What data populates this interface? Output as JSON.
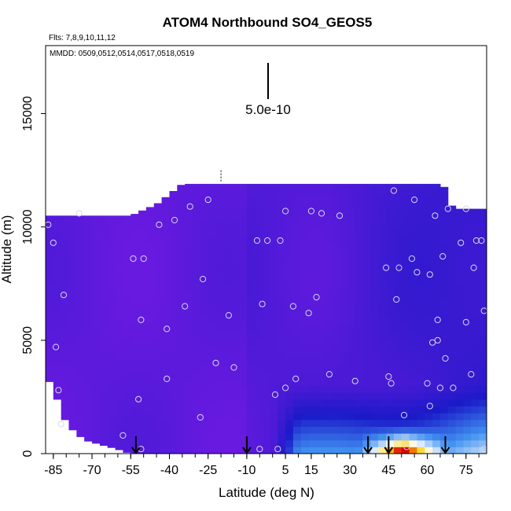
{
  "chart_data": {
    "type": "heatmap",
    "title": "ATOM4 Northbound SO4_GEOS5",
    "subtitle_flights": "Flts: 7,8,9,10,11,12",
    "subtitle_dates": "MMDD: 0509,0512,0514,0517,0518,0519",
    "scale_label": "5.0e-10",
    "xlabel": "Latitude (deg N)",
    "ylabel": "Altitude (m)",
    "xlim": [
      -88,
      83
    ],
    "ylim": [
      0,
      18000
    ],
    "x_ticks": [
      -85,
      -70,
      -55,
      -40,
      -25,
      -10,
      5,
      15,
      30,
      45,
      60,
      75
    ],
    "x_tick_labels": [
      "-85",
      "-70",
      "-55",
      "-40",
      "-25",
      "-10",
      "5",
      "15",
      "30",
      "45",
      "60",
      "75"
    ],
    "y_ticks": [
      0,
      5000,
      10000,
      15000
    ],
    "y_tick_labels": [
      "0",
      "5000",
      "10000",
      "15000"
    ],
    "colors": {
      "low": "#6a1ae0",
      "mid_low": "#1a1ac8",
      "mid": "#3f8ff0",
      "high": "#ffffff",
      "peak": "#ffd000",
      "max": "#d80000"
    },
    "field_top_altitude": [
      [
        -87,
        10500
      ],
      [
        -70,
        10500
      ],
      [
        -55,
        10500
      ],
      [
        -45,
        11000
      ],
      [
        -35,
        11900
      ],
      [
        -20,
        11900
      ],
      [
        0,
        11900
      ],
      [
        20,
        11900
      ],
      [
        40,
        11900
      ],
      [
        55,
        11900
      ],
      [
        66,
        11900
      ],
      [
        70,
        10800
      ],
      [
        82,
        10800
      ]
    ],
    "field_bottom_altitude": [
      [
        -87,
        3300
      ],
      [
        -84,
        2600
      ],
      [
        -82,
        1800
      ],
      [
        -79,
        1200
      ],
      [
        -73,
        600
      ],
      [
        -60,
        200
      ],
      [
        -55,
        0
      ],
      [
        82,
        0
      ]
    ],
    "high_concentration_region": {
      "x_range": [
        0,
        82
      ],
      "alt_max": 3000,
      "peak_x": [
        33,
        68
      ],
      "peak_alt_max": 1200
    },
    "measurement_points": [
      {
        "x": -87,
        "y": 10100
      },
      {
        "x": -85,
        "y": 9300
      },
      {
        "x": -84,
        "y": 4700
      },
      {
        "x": -83,
        "y": 2800
      },
      {
        "x": -82,
        "y": 1300
      },
      {
        "x": -81,
        "y": 7000
      },
      {
        "x": -75,
        "y": 10600
      },
      {
        "x": -58,
        "y": 800
      },
      {
        "x": -54,
        "y": 8600
      },
      {
        "x": -52,
        "y": 2400
      },
      {
        "x": -51,
        "y": 5900
      },
      {
        "x": -50,
        "y": 8600
      },
      {
        "x": -51,
        "y": 200
      },
      {
        "x": -44,
        "y": 10100
      },
      {
        "x": -41,
        "y": 3300
      },
      {
        "x": -41,
        "y": 5500
      },
      {
        "x": -38,
        "y": 10300
      },
      {
        "x": -34,
        "y": 6500
      },
      {
        "x": -32,
        "y": 10900
      },
      {
        "x": -28,
        "y": 1600
      },
      {
        "x": -27,
        "y": 7700
      },
      {
        "x": -25,
        "y": 11200
      },
      {
        "x": -22,
        "y": 4000
      },
      {
        "x": -17,
        "y": 6100
      },
      {
        "x": -15,
        "y": 3800
      },
      {
        "x": -6,
        "y": 9400
      },
      {
        "x": -5,
        "y": 200
      },
      {
        "x": -4,
        "y": 6600
      },
      {
        "x": -2,
        "y": 9400
      },
      {
        "x": 1,
        "y": 2600
      },
      {
        "x": 2,
        "y": 200
      },
      {
        "x": 3,
        "y": 9400
      },
      {
        "x": 5,
        "y": 10700
      },
      {
        "x": 5,
        "y": 2900
      },
      {
        "x": 8,
        "y": 6500
      },
      {
        "x": 9,
        "y": 3300
      },
      {
        "x": 14,
        "y": 6200
      },
      {
        "x": 15,
        "y": 10700
      },
      {
        "x": 17,
        "y": 6900
      },
      {
        "x": 19,
        "y": 10600
      },
      {
        "x": 22,
        "y": 3500
      },
      {
        "x": 26,
        "y": 10500
      },
      {
        "x": 32,
        "y": 3200
      },
      {
        "x": 44,
        "y": 8200
      },
      {
        "x": 45,
        "y": 3400
      },
      {
        "x": 46,
        "y": 3100
      },
      {
        "x": 47,
        "y": 11600
      },
      {
        "x": 48,
        "y": 6800
      },
      {
        "x": 49,
        "y": 8200
      },
      {
        "x": 51,
        "y": 1700
      },
      {
        "x": 52,
        "y": 300
      },
      {
        "x": 54,
        "y": 8600
      },
      {
        "x": 55,
        "y": 11200
      },
      {
        "x": 56,
        "y": 8000
      },
      {
        "x": 60,
        "y": 3100
      },
      {
        "x": 61,
        "y": 7900
      },
      {
        "x": 61,
        "y": 2100
      },
      {
        "x": 62,
        "y": 4900
      },
      {
        "x": 63,
        "y": 10500
      },
      {
        "x": 64,
        "y": 5000
      },
      {
        "x": 64,
        "y": 5900
      },
      {
        "x": 65,
        "y": 2900
      },
      {
        "x": 66,
        "y": 8700
      },
      {
        "x": 67,
        "y": 4200
      },
      {
        "x": 68,
        "y": 10800
      },
      {
        "x": 70,
        "y": 2900
      },
      {
        "x": 73,
        "y": 9300
      },
      {
        "x": 75,
        "y": 5800
      },
      {
        "x": 75,
        "y": 10800
      },
      {
        "x": 77,
        "y": 3500
      },
      {
        "x": 78,
        "y": 8200
      },
      {
        "x": 79,
        "y": 9400
      },
      {
        "x": 81,
        "y": 9400
      },
      {
        "x": 82,
        "y": 6300
      },
      {
        "x": 82,
        "y": 200
      }
    ],
    "arrow_latitudes": [
      -53,
      -10,
      37,
      45,
      67
    ],
    "dashed_line": {
      "x": -20,
      "alt_range": [
        12000,
        12500
      ]
    },
    "grid": false,
    "legend": "none"
  }
}
